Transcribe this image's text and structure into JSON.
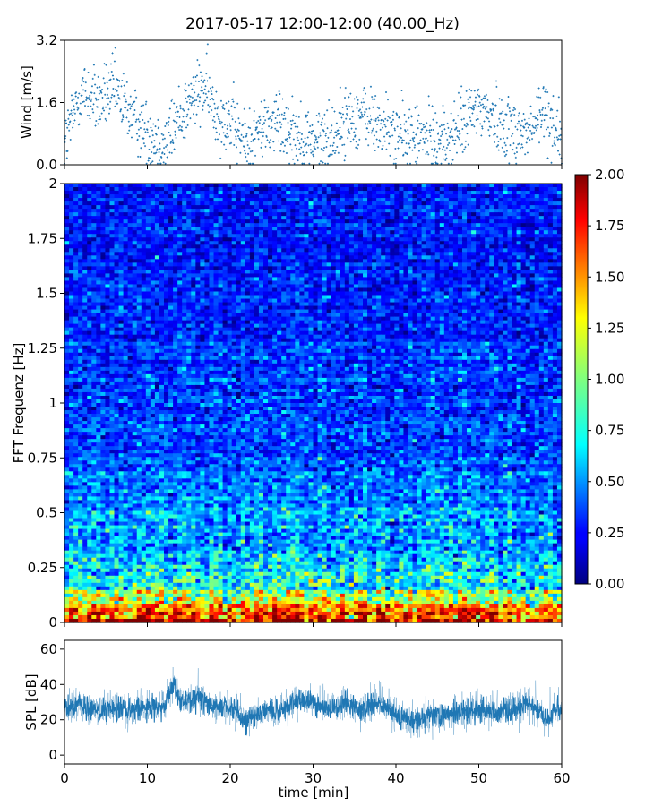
{
  "title": "2017-05-17 12:00-12:00 (40.00_Hz)",
  "colors": {
    "series": "#1f77b4",
    "axis": "#000000",
    "background": "#ffffff"
  },
  "chart_data": [
    {
      "id": "wind",
      "type": "scatter",
      "ylabel": "Wind [m/s]",
      "xlim": [
        0,
        60
      ],
      "ylim": [
        0,
        3.2
      ],
      "yticks": [
        0.0,
        1.6,
        3.2
      ],
      "ytick_labels": [
        "0.0",
        "1.6",
        "3.2"
      ],
      "xticks": [
        0,
        10,
        20,
        30,
        40,
        50,
        60
      ],
      "marker": "small cross",
      "x": [
        0,
        2,
        4,
        6,
        8,
        10,
        11,
        12,
        14,
        16,
        17,
        18,
        20,
        22,
        24,
        26,
        28,
        30,
        32,
        34,
        36,
        38,
        40,
        42,
        44,
        46,
        48,
        50,
        52,
        54,
        56,
        58,
        60
      ],
      "y": [
        0.5,
        1.9,
        1.6,
        1.9,
        1.3,
        0.8,
        0.7,
        0.5,
        1.3,
        1.8,
        2.0,
        1.4,
        1.1,
        0.5,
        1.0,
        1.1,
        0.8,
        0.6,
        0.7,
        1.1,
        1.3,
        1.0,
        0.8,
        0.7,
        0.7,
        0.6,
        1.0,
        1.5,
        1.2,
        0.9,
        0.8,
        1.4,
        0.7
      ]
    },
    {
      "id": "spectrogram",
      "type": "heatmap",
      "ylabel": "FFT Frequenz [Hz]",
      "xlim": [
        0,
        60
      ],
      "ylim": [
        0,
        2
      ],
      "yticks": [
        0,
        0.25,
        0.5,
        0.75,
        1,
        1.25,
        1.5,
        1.75,
        2
      ],
      "ytick_labels": [
        "0",
        "0.25",
        "0.5",
        "0.75",
        "1",
        "1.25",
        "1.5",
        "1.75",
        "2"
      ],
      "xticks": [
        0,
        10,
        20,
        30,
        40,
        50,
        60
      ],
      "colormap": "jet",
      "clim": [
        0,
        2
      ],
      "colorbar_ticks": [
        "0.00",
        "0.25",
        "0.50",
        "0.75",
        "1.00",
        "1.25",
        "1.50",
        "1.75",
        "2.00"
      ],
      "intensity_profile": {
        "freq_hz": [
          0,
          0.05,
          0.1,
          0.15,
          0.25,
          0.35,
          0.5,
          0.75,
          1.0,
          1.5,
          2.0
        ],
        "mean_value": [
          1.9,
          1.6,
          1.1,
          0.9,
          0.7,
          0.6,
          0.5,
          0.4,
          0.35,
          0.3,
          0.27
        ]
      }
    },
    {
      "id": "spl",
      "type": "line",
      "ylabel": "SPL [dB]",
      "xlabel": "time [min]",
      "xlim": [
        0,
        60
      ],
      "ylim": [
        -5,
        65
      ],
      "yticks": [
        0,
        20,
        40,
        60
      ],
      "ytick_labels": [
        "0",
        "20",
        "40",
        "60"
      ],
      "xticks": [
        0,
        10,
        20,
        30,
        40,
        50,
        60
      ],
      "xtick_labels": [
        "0",
        "10",
        "20",
        "30",
        "40",
        "50",
        "60"
      ],
      "x": [
        0,
        2,
        4,
        6,
        8,
        10,
        12,
        13,
        14,
        16,
        18,
        20,
        22,
        24,
        26,
        28,
        30,
        32,
        34,
        36,
        38,
        40,
        42,
        44,
        46,
        48,
        50,
        52,
        54,
        56,
        58,
        60
      ],
      "y": [
        27,
        28,
        24,
        27,
        26,
        26,
        27,
        40,
        30,
        32,
        28,
        26,
        20,
        24,
        26,
        31,
        30,
        26,
        30,
        25,
        31,
        22,
        19,
        24,
        22,
        24,
        26,
        24,
        26,
        30,
        20,
        28
      ]
    }
  ]
}
